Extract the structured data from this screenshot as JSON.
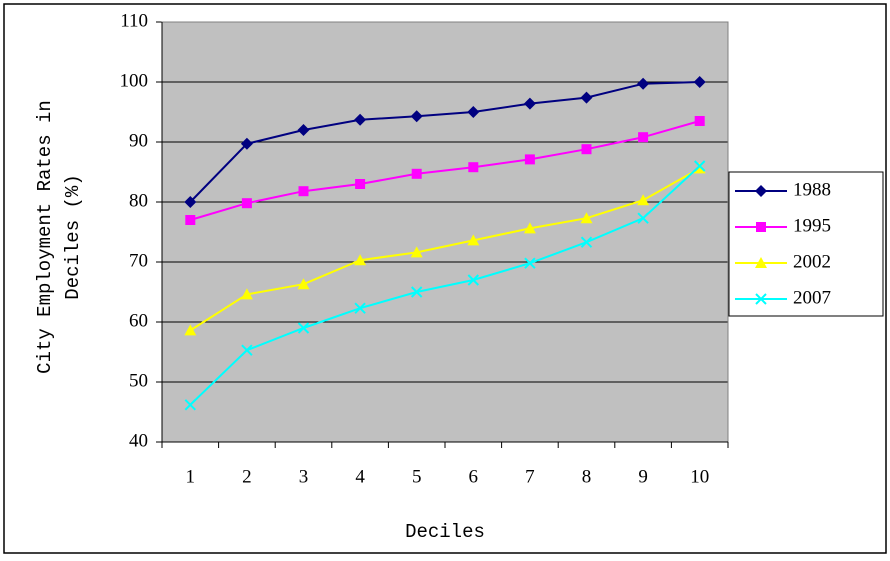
{
  "chart_data": {
    "type": "line",
    "x_label": "Deciles",
    "y_label": [
      "City Employment Rates in",
      "Deciles (%)"
    ],
    "categories": [
      "1",
      "2",
      "3",
      "4",
      "5",
      "6",
      "7",
      "8",
      "9",
      "10"
    ],
    "series": [
      {
        "name": "1988",
        "color": "#000080",
        "marker": "diamond",
        "values": [
          80,
          89.7,
          92,
          93.7,
          94.3,
          95,
          96.4,
          97.4,
          99.7,
          100
        ]
      },
      {
        "name": "1995",
        "color": "#ff00ff",
        "marker": "square",
        "values": [
          77,
          79.8,
          81.8,
          83,
          84.7,
          85.8,
          87.1,
          88.8,
          90.8,
          93.5
        ]
      },
      {
        "name": "2002",
        "color": "#ffff00",
        "marker": "triangle",
        "values": [
          58.6,
          64.6,
          66.3,
          70.3,
          71.6,
          73.6,
          75.6,
          77.3,
          80.3,
          85.6
        ]
      },
      {
        "name": "2007",
        "color": "#00ffff",
        "marker": "x",
        "values": [
          46.2,
          55.3,
          59,
          62.3,
          65,
          67,
          69.8,
          73.3,
          77.3,
          86
        ]
      }
    ],
    "ylim": [
      40,
      110
    ],
    "yticks": [
      40,
      50,
      60,
      70,
      80,
      90,
      100,
      110
    ],
    "grid": true,
    "plot_background": "#c0c0c0",
    "legend": "right"
  }
}
